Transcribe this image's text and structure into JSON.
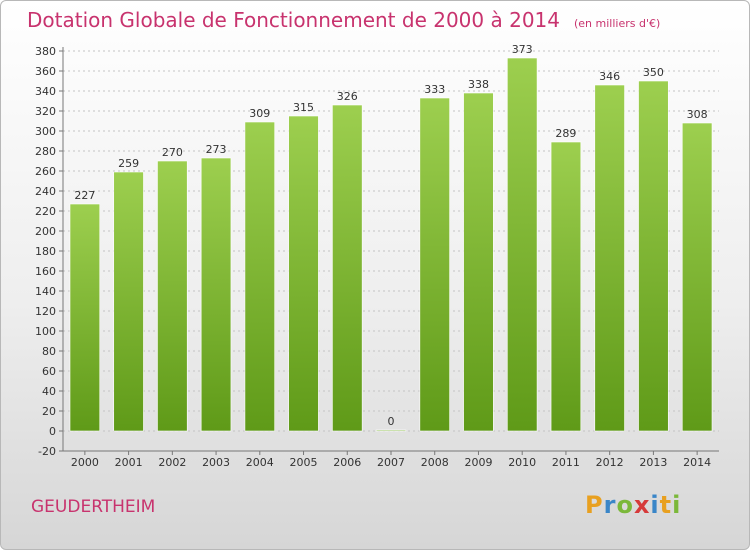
{
  "header": {
    "title": "Dotation Globale de Fonctionnement de 2000 à 2014",
    "unit": "(en milliers d'€)"
  },
  "footer": {
    "commune": "GEUDERTHEIM",
    "brand_letters": [
      "P",
      "r",
      "o",
      "x",
      "i",
      "t",
      "i"
    ]
  },
  "colors": {
    "bar_top": "#9dcf4f",
    "bar_bottom": "#5f9a18",
    "title": "#c8336e",
    "text": "#333333"
  },
  "chart_data": {
    "type": "bar",
    "title": "Dotation Globale de Fonctionnement de 2000 à 2014",
    "xlabel": "",
    "ylabel": "",
    "categories": [
      "2000",
      "2001",
      "2002",
      "2003",
      "2004",
      "2005",
      "2006",
      "2007",
      "2008",
      "2009",
      "2010",
      "2011",
      "2012",
      "2013",
      "2014"
    ],
    "values": [
      227,
      259,
      270,
      273,
      309,
      315,
      326,
      0,
      333,
      338,
      373,
      289,
      346,
      350,
      308
    ],
    "ylim": [
      -20,
      380
    ],
    "yticks": [
      -20,
      0,
      20,
      40,
      60,
      80,
      100,
      120,
      140,
      160,
      180,
      200,
      220,
      240,
      260,
      280,
      300,
      320,
      340,
      360,
      380
    ],
    "grid": true,
    "data_labels": true
  }
}
